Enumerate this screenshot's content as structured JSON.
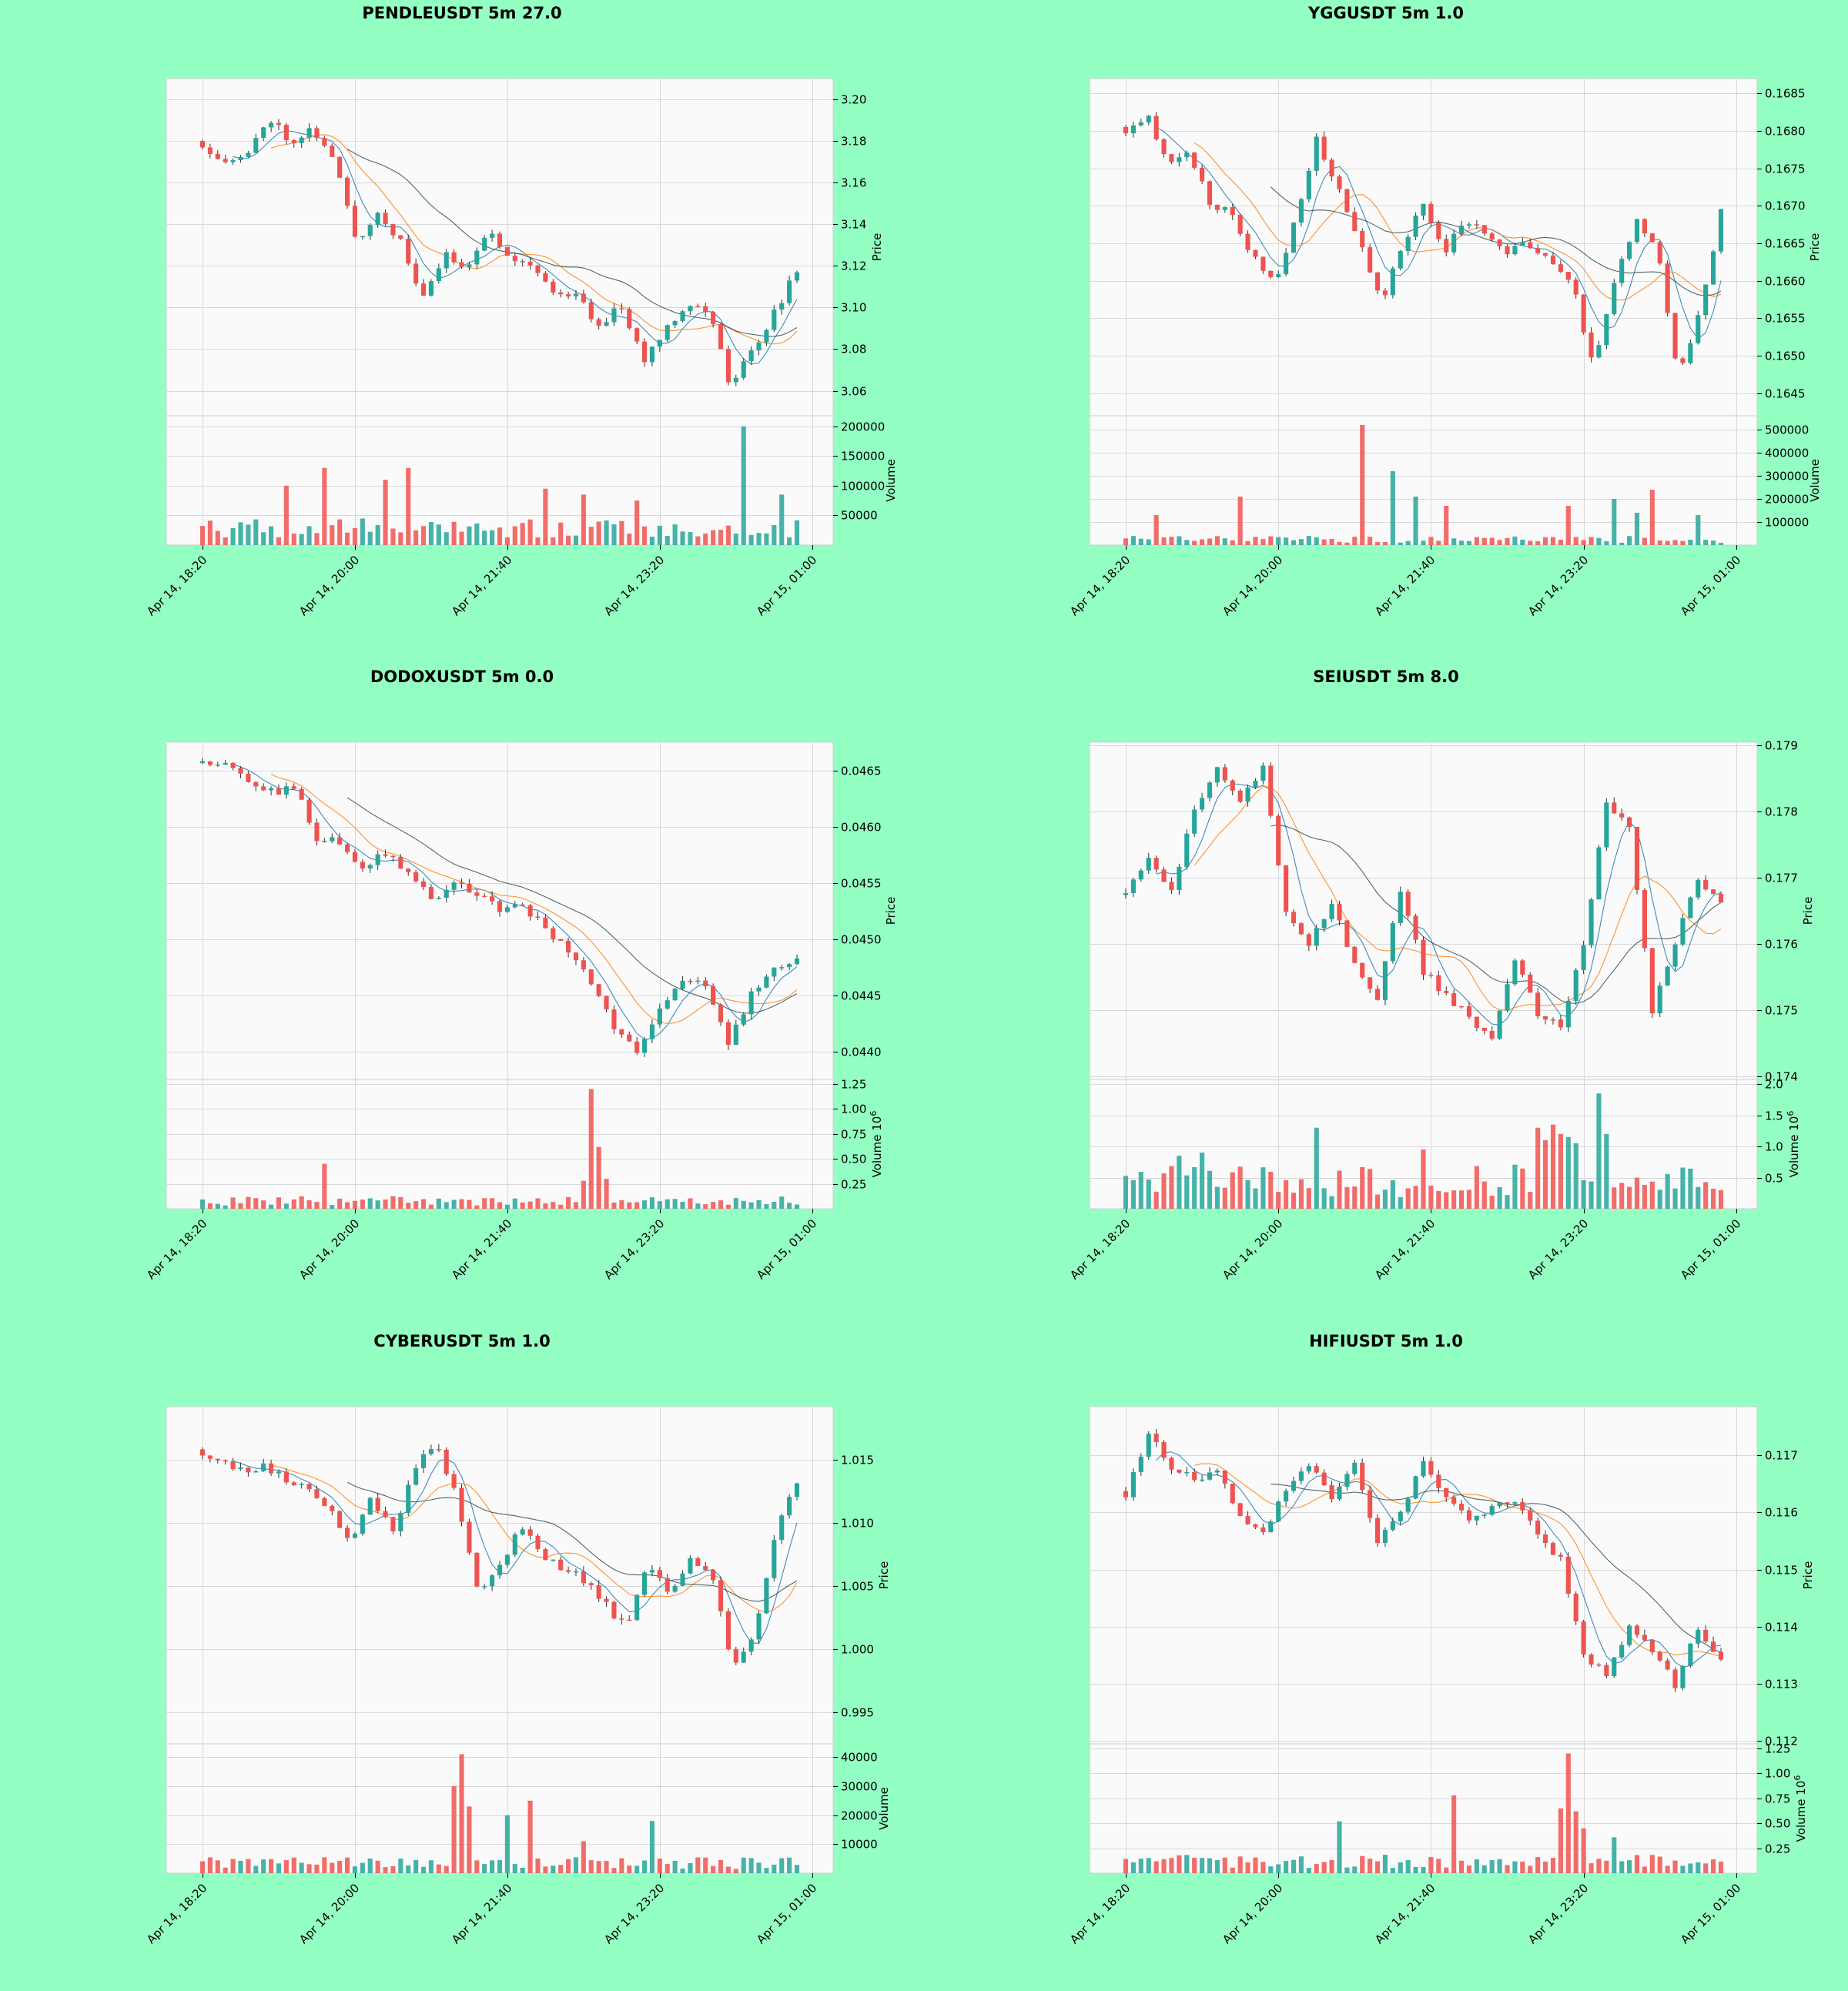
{
  "page": {
    "background": "#93ffc2"
  },
  "style": {
    "up_color": "#26a69a",
    "down_color": "#ef5350",
    "ma_colors": [
      "#1f77b4",
      "#ff7f0e",
      "#2f4f4f"
    ],
    "panel_bg": "#fafafa",
    "grid": "#d9d9d9"
  },
  "chart_data": [
    {
      "type": "candlestick",
      "title": "PENDLEUSDT 5m 27.0",
      "ylabel": "Price",
      "volume_label": "Volume",
      "volume_exponent": "",
      "x_ticks": [
        "Apr 14, 18:20",
        "Apr 14, 20:00",
        "Apr 14, 21:40",
        "Apr 14, 23:20",
        "Apr 15, 01:00"
      ],
      "price_ticks": [
        "3.06",
        "3.08",
        "3.10",
        "3.12",
        "3.14",
        "3.16",
        "3.18",
        "3.20"
      ],
      "volume_ticks": [
        "50000",
        "100000",
        "150000",
        "200000"
      ],
      "ylim": [
        3.048,
        3.21
      ],
      "vol_ylim": [
        0,
        210000
      ],
      "anchors": [
        3.178,
        3.171,
        3.172,
        3.192,
        3.18,
        3.186,
        3.17,
        3.132,
        3.146,
        3.131,
        3.104,
        3.125,
        3.12,
        3.136,
        3.125,
        3.12,
        3.107,
        3.106,
        3.091,
        3.102,
        3.074,
        3.09,
        3.102,
        3.098,
        3.062,
        3.08,
        3.098,
        3.118
      ],
      "vol_base": 28000,
      "vol_spikes": [
        [
          11,
          100000
        ],
        [
          16,
          130000
        ],
        [
          24,
          110000
        ],
        [
          27,
          130000
        ],
        [
          45,
          95000
        ],
        [
          50,
          85000
        ],
        [
          57,
          75000
        ],
        [
          71,
          200000
        ],
        [
          76,
          85000
        ]
      ],
      "start_up": false,
      "seed": 11
    },
    {
      "type": "candlestick",
      "title": "YGGUSDT 5m 1.0",
      "ylabel": "Price",
      "volume_label": "Volume",
      "volume_exponent": "",
      "x_ticks": [
        "Apr 14, 18:20",
        "Apr 14, 20:00",
        "Apr 14, 21:40",
        "Apr 14, 23:20",
        "Apr 15, 01:00"
      ],
      "price_ticks": [
        "0.1645",
        "0.1650",
        "0.1655",
        "0.1660",
        "0.1665",
        "0.1670",
        "0.1675",
        "0.1680",
        "0.1685"
      ],
      "volume_ticks": [
        "100000",
        "200000",
        "300000",
        "400000",
        "500000"
      ],
      "ylim": [
        0.1642,
        0.1687
      ],
      "vol_ylim": [
        0,
        540000
      ],
      "anchors": [
        0.168,
        0.1682,
        0.1676,
        0.1677,
        0.167,
        0.1669,
        0.1663,
        0.166,
        0.1668,
        0.1679,
        0.1672,
        0.1665,
        0.1657,
        0.1665,
        0.167,
        0.1664,
        0.1668,
        0.1666,
        0.1664,
        0.1665,
        0.1662,
        0.166,
        0.1648,
        0.166,
        0.1668,
        0.1665,
        0.1647,
        0.1656,
        0.1669
      ],
      "vol_base": 25000,
      "vol_spikes": [
        [
          4,
          130000
        ],
        [
          15,
          210000
        ],
        [
          31,
          520000
        ],
        [
          35,
          320000
        ],
        [
          38,
          210000
        ],
        [
          42,
          170000
        ],
        [
          58,
          170000
        ],
        [
          64,
          200000
        ],
        [
          67,
          140000
        ],
        [
          69,
          240000
        ],
        [
          75,
          130000
        ]
      ],
      "start_up": false,
      "seed": 23
    },
    {
      "type": "candlestick",
      "title": "DODOXUSDT 5m 0.0",
      "ylabel": "Price",
      "volume_label": "Volume",
      "volume_exponent": "6",
      "x_ticks": [
        "Apr 14, 18:20",
        "Apr 14, 20:00",
        "Apr 14, 21:40",
        "Apr 14, 23:20",
        "Apr 15, 01:00"
      ],
      "price_ticks": [
        "0.0440",
        "0.0445",
        "0.0450",
        "0.0455",
        "0.0460",
        "0.0465"
      ],
      "volume_ticks": [
        "0.25",
        "0.50",
        "0.75",
        "1.00",
        "1.25"
      ],
      "ylim": [
        0.04375,
        0.04675
      ],
      "vol_ylim": [
        0,
        1.25
      ],
      "anchors": [
        0.0466,
        0.04655,
        0.0464,
        0.0463,
        0.04635,
        0.0459,
        0.04585,
        0.04565,
        0.04575,
        0.0456,
        0.04535,
        0.0455,
        0.0454,
        0.04525,
        0.0453,
        0.0451,
        0.0449,
        0.0446,
        0.0442,
        0.044,
        0.0444,
        0.04465,
        0.0446,
        0.04405,
        0.0445,
        0.04475,
        0.0448
      ],
      "vol_base": 0.08,
      "vol_spikes": [
        [
          16,
          0.45
        ],
        [
          51,
          1.2
        ],
        [
          52,
          0.62
        ],
        [
          53,
          0.3
        ],
        [
          50,
          0.28
        ]
      ],
      "start_up": true,
      "seed": 37
    },
    {
      "type": "candlestick",
      "title": "SEIUSDT 5m 8.0",
      "ylabel": "Price",
      "volume_label": "Volume",
      "volume_exponent": "6",
      "x_ticks": [
        "Apr 14, 18:20",
        "Apr 14, 20:00",
        "Apr 14, 21:40",
        "Apr 14, 23:20",
        "Apr 15, 01:00"
      ],
      "price_ticks": [
        "0.174",
        "0.175",
        "0.176",
        "0.177",
        "0.178",
        "0.179"
      ],
      "volume_ticks": [
        "0.5",
        "1.0",
        "1.5",
        "2.0"
      ],
      "ylim": [
        0.17395,
        0.17905
      ],
      "vol_ylim": [
        0,
        2.0
      ],
      "anchors": [
        0.1768,
        0.1773,
        0.1768,
        0.178,
        0.1787,
        0.1782,
        0.1787,
        0.1765,
        0.176,
        0.1766,
        0.1757,
        0.1752,
        0.1768,
        0.1756,
        0.1752,
        0.1749,
        0.1745,
        0.1758,
        0.1749,
        0.1748,
        0.176,
        0.1781,
        0.1778,
        0.175,
        0.176,
        0.177,
        0.1766
      ],
      "vol_base": 0.45,
      "vol_spikes": [
        [
          7,
          0.85
        ],
        [
          10,
          0.9
        ],
        [
          25,
          1.3
        ],
        [
          39,
          0.95
        ],
        [
          54,
          1.3
        ],
        [
          55,
          1.1
        ],
        [
          56,
          1.35
        ],
        [
          57,
          1.2
        ],
        [
          58,
          1.15
        ],
        [
          59,
          1.05
        ],
        [
          62,
          1.85
        ],
        [
          63,
          1.2
        ]
      ],
      "start_up": true,
      "seed": 51
    },
    {
      "type": "candlestick",
      "title": "CYBERUSDT 5m 1.0",
      "ylabel": "Price",
      "volume_label": "Volume",
      "volume_exponent": "",
      "x_ticks": [
        "Apr 14, 18:20",
        "Apr 14, 20:00",
        "Apr 14, 21:40",
        "Apr 14, 23:20",
        "Apr 15, 01:00"
      ],
      "price_ticks": [
        "0.995",
        "1.000",
        "1.005",
        "1.010",
        "1.015"
      ],
      "volume_ticks": [
        "10000",
        "20000",
        "30000",
        "40000"
      ],
      "ylim": [
        0.9925,
        1.0192
      ],
      "vol_ylim": [
        0,
        43000
      ],
      "anchors": [
        1.0155,
        1.015,
        1.014,
        1.0145,
        1.0135,
        1.013,
        1.011,
        1.0085,
        1.012,
        1.009,
        1.0145,
        1.016,
        1.012,
        1.004,
        1.0065,
        1.01,
        1.007,
        1.0065,
        1.0055,
        1.0035,
        1.0015,
        1.007,
        1.0045,
        1.007,
        1.006,
        0.9985,
        1.001,
        1.0095,
        1.013
      ],
      "vol_base": 3500,
      "vol_spikes": [
        [
          33,
          30000
        ],
        [
          34,
          41000
        ],
        [
          35,
          23000
        ],
        [
          40,
          20000
        ],
        [
          43,
          25000
        ],
        [
          50,
          11000
        ],
        [
          59,
          18000
        ]
      ],
      "start_up": false,
      "seed": 67
    },
    {
      "type": "candlestick",
      "title": "HIFIUSDT 5m 1.0",
      "ylabel": "Price",
      "volume_label": "Volume",
      "volume_exponent": "6",
      "x_ticks": [
        "Apr 14, 18:20",
        "Apr 14, 20:00",
        "Apr 14, 21:40",
        "Apr 14, 23:20",
        "Apr 15, 01:00"
      ],
      "price_ticks": [
        "0.112",
        "0.113",
        "0.114",
        "0.115",
        "0.116",
        "0.117"
      ],
      "volume_ticks": [
        "0.25",
        "0.50",
        "0.75",
        "1.00",
        "1.25"
      ],
      "ylim": [
        0.11195,
        0.11785
      ],
      "vol_ylim": [
        0,
        1.25
      ],
      "anchors": [
        0.1163,
        0.1174,
        0.1168,
        0.1166,
        0.1167,
        0.116,
        0.1156,
        0.1164,
        0.1168,
        0.1163,
        0.1168,
        0.1155,
        0.116,
        0.1169,
        0.1163,
        0.1158,
        0.1161,
        0.1162,
        0.1156,
        0.1152,
        0.1135,
        0.1132,
        0.114,
        0.1136,
        0.113,
        0.114,
        0.1134
      ],
      "vol_base": 0.12,
      "vol_spikes": [
        [
          28,
          0.52
        ],
        [
          43,
          0.78
        ],
        [
          57,
          0.65
        ],
        [
          58,
          1.2
        ],
        [
          59,
          0.62
        ],
        [
          60,
          0.45
        ],
        [
          64,
          0.36
        ]
      ],
      "start_up": false,
      "seed": 83
    }
  ]
}
